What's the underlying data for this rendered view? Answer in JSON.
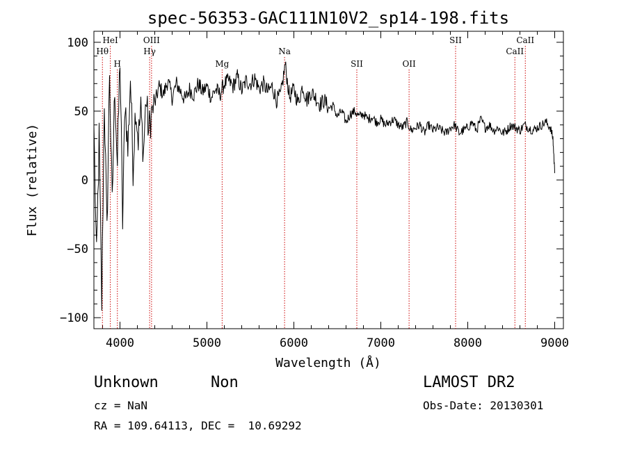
{
  "chart_data": {
    "type": "line",
    "title": "spec-56353-GAC111N10V2_sp14-198.fits",
    "xlabel": "Wavelength (Å)",
    "ylabel": "Flux (relative)",
    "xlim": [
      3700,
      9100
    ],
    "ylim": [
      -108,
      108
    ],
    "x_ticks": [
      4000,
      5000,
      6000,
      7000,
      8000,
      9000
    ],
    "x_tick_labels": [
      "4000",
      "5000",
      "6000",
      "7000",
      "8000",
      "9000"
    ],
    "y_ticks": [
      -100,
      -50,
      0,
      50,
      100
    ],
    "y_tick_labels": [
      "−100",
      "−50",
      "0",
      "50",
      "100"
    ],
    "line_color": "#000000",
    "marker_color": "#cc0000",
    "series": [
      {
        "name": "flux",
        "x": [
          3700,
          3730,
          3760,
          3790,
          3820,
          3850,
          3880,
          3910,
          3940,
          3970,
          4000,
          4030,
          4060,
          4090,
          4120,
          4150,
          4180,
          4210,
          4240,
          4270,
          4300,
          4330,
          4360,
          4400,
          4450,
          4500,
          4550,
          4600,
          4650,
          4700,
          4750,
          4800,
          4850,
          4900,
          4950,
          5000,
          5050,
          5100,
          5150,
          5200,
          5250,
          5300,
          5350,
          5400,
          5450,
          5500,
          5550,
          5600,
          5650,
          5700,
          5750,
          5800,
          5850,
          5900,
          5950,
          6000,
          6050,
          6100,
          6150,
          6200,
          6250,
          6300,
          6350,
          6400,
          6450,
          6500,
          6550,
          6600,
          6650,
          6700,
          6750,
          6800,
          6850,
          6900,
          6950,
          7000,
          7050,
          7100,
          7150,
          7200,
          7250,
          7300,
          7350,
          7400,
          7450,
          7500,
          7550,
          7600,
          7650,
          7700,
          7750,
          7800,
          7850,
          7900,
          7950,
          8000,
          8050,
          8100,
          8150,
          8200,
          8250,
          8300,
          8350,
          8400,
          8450,
          8500,
          8550,
          8600,
          8650,
          8700,
          8750,
          8800,
          8850,
          8900,
          8950,
          8980,
          9000
        ],
        "values": [
          40,
          -60,
          30,
          -90,
          60,
          -40,
          80,
          -20,
          70,
          10,
          90,
          -30,
          60,
          20,
          75,
          10,
          55,
          30,
          50,
          20,
          60,
          35,
          48,
          55,
          68,
          62,
          72,
          60,
          70,
          64,
          58,
          66,
          62,
          70,
          64,
          68,
          60,
          66,
          62,
          70,
          72,
          68,
          75,
          65,
          72,
          70,
          74,
          66,
          70,
          64,
          68,
          58,
          62,
          84,
          60,
          66,
          56,
          68,
          58,
          64,
          60,
          55,
          58,
          52,
          54,
          46,
          50,
          42,
          48,
          50,
          46,
          48,
          44,
          46,
          42,
          44,
          40,
          42,
          44,
          40,
          38,
          42,
          36,
          38,
          40,
          34,
          40,
          36,
          38,
          36,
          34,
          38,
          40,
          34,
          36,
          38,
          42,
          36,
          44,
          38,
          40,
          36,
          38,
          34,
          36,
          40,
          38,
          36,
          40,
          38,
          36,
          38,
          40,
          42,
          38,
          30,
          5
        ]
      }
    ],
    "lines": [
      {
        "label": "Hθ",
        "x": 3798,
        "row": 2
      },
      {
        "label": "HeI",
        "x": 3889,
        "row": 1
      },
      {
        "label": "H",
        "x": 3970,
        "row": 3
      },
      {
        "label": "Hγ",
        "x": 4341,
        "row": 2
      },
      {
        "label": "OIII",
        "x": 4363,
        "row": 1
      },
      {
        "label": "Mg",
        "x": 5175,
        "row": 3
      },
      {
        "label": "Na",
        "x": 5893,
        "row": 2
      },
      {
        "label": "SII",
        "x": 6724,
        "row": 3
      },
      {
        "label": "OII",
        "x": 7325,
        "row": 3
      },
      {
        "label": "SII",
        "x": 7860,
        "row": 1
      },
      {
        "label": "CaII",
        "x": 8542,
        "row": 2
      },
      {
        "label": "CaII",
        "x": 8662,
        "row": 1
      }
    ]
  },
  "info": {
    "object_class": "Unknown",
    "subclass": "Non",
    "survey": "LAMOST DR2",
    "redshift": "cz = NaN",
    "obs_date": "Obs-Date: 20130301",
    "coords": "RA = 109.64113, DEC =  10.69292"
  }
}
